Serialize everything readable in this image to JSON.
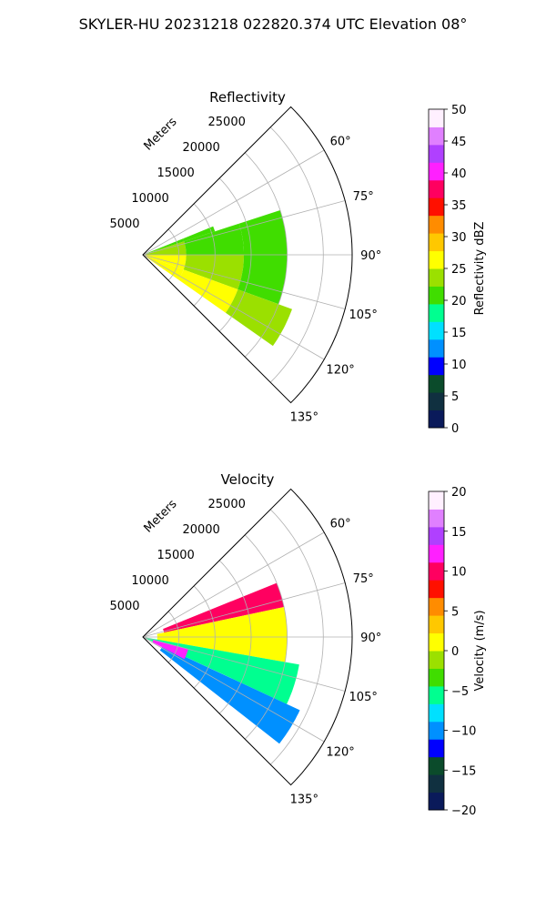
{
  "figure": {
    "title": "SKYLER-HU  20231218  022820.374 UTC Elevation 08°"
  },
  "chart_data": [
    {
      "type": "heatmap",
      "projection": "polar-sector",
      "title": "Reflectivity",
      "range_axis_label": "Meters",
      "range_ticks": [
        "5000",
        "10000",
        "15000",
        "20000",
        "25000"
      ],
      "range_tick_values": [
        5000,
        10000,
        15000,
        20000,
        25000
      ],
      "max_range": 29000,
      "azimuth_range": [
        45,
        135
      ],
      "azimuth_ticks": [
        "60°",
        "75°",
        "90°",
        "105°",
        "120°",
        "135°"
      ],
      "azimuth_tick_values": [
        60,
        75,
        90,
        105,
        120,
        135
      ],
      "grid": true,
      "colorbar": {
        "label": "Reflectivity dBZ",
        "range": [
          0,
          50
        ],
        "ticks": [
          "0",
          "5",
          "10",
          "15",
          "20",
          "25",
          "30",
          "35",
          "40",
          "45",
          "50"
        ],
        "tick_values": [
          0,
          5,
          10,
          15,
          20,
          25,
          30,
          35,
          40,
          45,
          50
        ],
        "stops": [
          "#0a1a5a",
          "#103040",
          "#0b4b2b",
          "#0000ff",
          "#0090ff",
          "#00e0ff",
          "#00ff90",
          "#40dd00",
          "#9be000",
          "#ffff00",
          "#ffc800",
          "#ff8c00",
          "#ff1000",
          "#ff0060",
          "#ff20ff",
          "#b040ff",
          "#e080ff",
          "#fff0ff"
        ]
      },
      "field": {
        "bands": [
          {
            "r_start": 0,
            "r_end": 6000,
            "value": 30
          },
          {
            "r_start": 6000,
            "r_end": 14000,
            "value": 26
          },
          {
            "r_start": 14000,
            "r_end": 22000,
            "value": 22
          },
          {
            "r_start": 22000,
            "r_end": 26000,
            "value": 19
          }
        ],
        "az_edges": [
          {
            "az": 68,
            "r_max": 10500,
            "value": 14
          },
          {
            "az": 72,
            "r_max": 22000,
            "value": 18
          },
          {
            "az": 90,
            "r_max": 20000,
            "value": 22
          },
          {
            "az": 110,
            "r_max": 22000,
            "value": 24
          },
          {
            "az": 125,
            "r_max": 24000,
            "value": 26
          }
        ]
      }
    },
    {
      "type": "heatmap",
      "projection": "polar-sector",
      "title": "Velocity",
      "range_axis_label": "Meters",
      "range_ticks": [
        "5000",
        "10000",
        "15000",
        "20000",
        "25000"
      ],
      "range_tick_values": [
        5000,
        10000,
        15000,
        20000,
        25000
      ],
      "max_range": 29000,
      "azimuth_range": [
        45,
        135
      ],
      "azimuth_ticks": [
        "60°",
        "75°",
        "90°",
        "105°",
        "120°",
        "135°"
      ],
      "azimuth_tick_values": [
        60,
        75,
        90,
        105,
        120,
        135
      ],
      "grid": true,
      "colorbar": {
        "label": "Velocity (m/s)",
        "range": [
          -20,
          20
        ],
        "ticks": [
          "−20",
          "−15",
          "−10",
          "−5",
          "0",
          "5",
          "10",
          "15",
          "20"
        ],
        "tick_values": [
          -20,
          -15,
          -10,
          -5,
          0,
          5,
          10,
          15,
          20
        ],
        "stops": [
          "#0a1a5a",
          "#103040",
          "#0b4b2b",
          "#0000ff",
          "#0090ff",
          "#00e0ff",
          "#00ff90",
          "#40dd00",
          "#9be000",
          "#ffff00",
          "#ffc800",
          "#ff8c00",
          "#ff1000",
          "#ff0060",
          "#ff20ff",
          "#b040ff",
          "#e080ff",
          "#fff0ff"
        ]
      },
      "field": {
        "sectors": [
          {
            "az_start": 68,
            "az_end": 78,
            "r_start": 3000,
            "r_end": 20000,
            "value": 10
          },
          {
            "az_start": 78,
            "az_end": 100,
            "r_start": 2000,
            "r_end": 20000,
            "value": 1
          },
          {
            "az_start": 100,
            "az_end": 115,
            "r_start": 0,
            "r_end": 22000,
            "value": -6
          },
          {
            "az_start": 115,
            "az_end": 128,
            "r_start": 3000,
            "r_end": 24000,
            "value": -11
          },
          {
            "az_start": 105,
            "az_end": 118,
            "r_start": 1500,
            "r_end": 6500,
            "value": 12
          }
        ]
      }
    }
  ]
}
